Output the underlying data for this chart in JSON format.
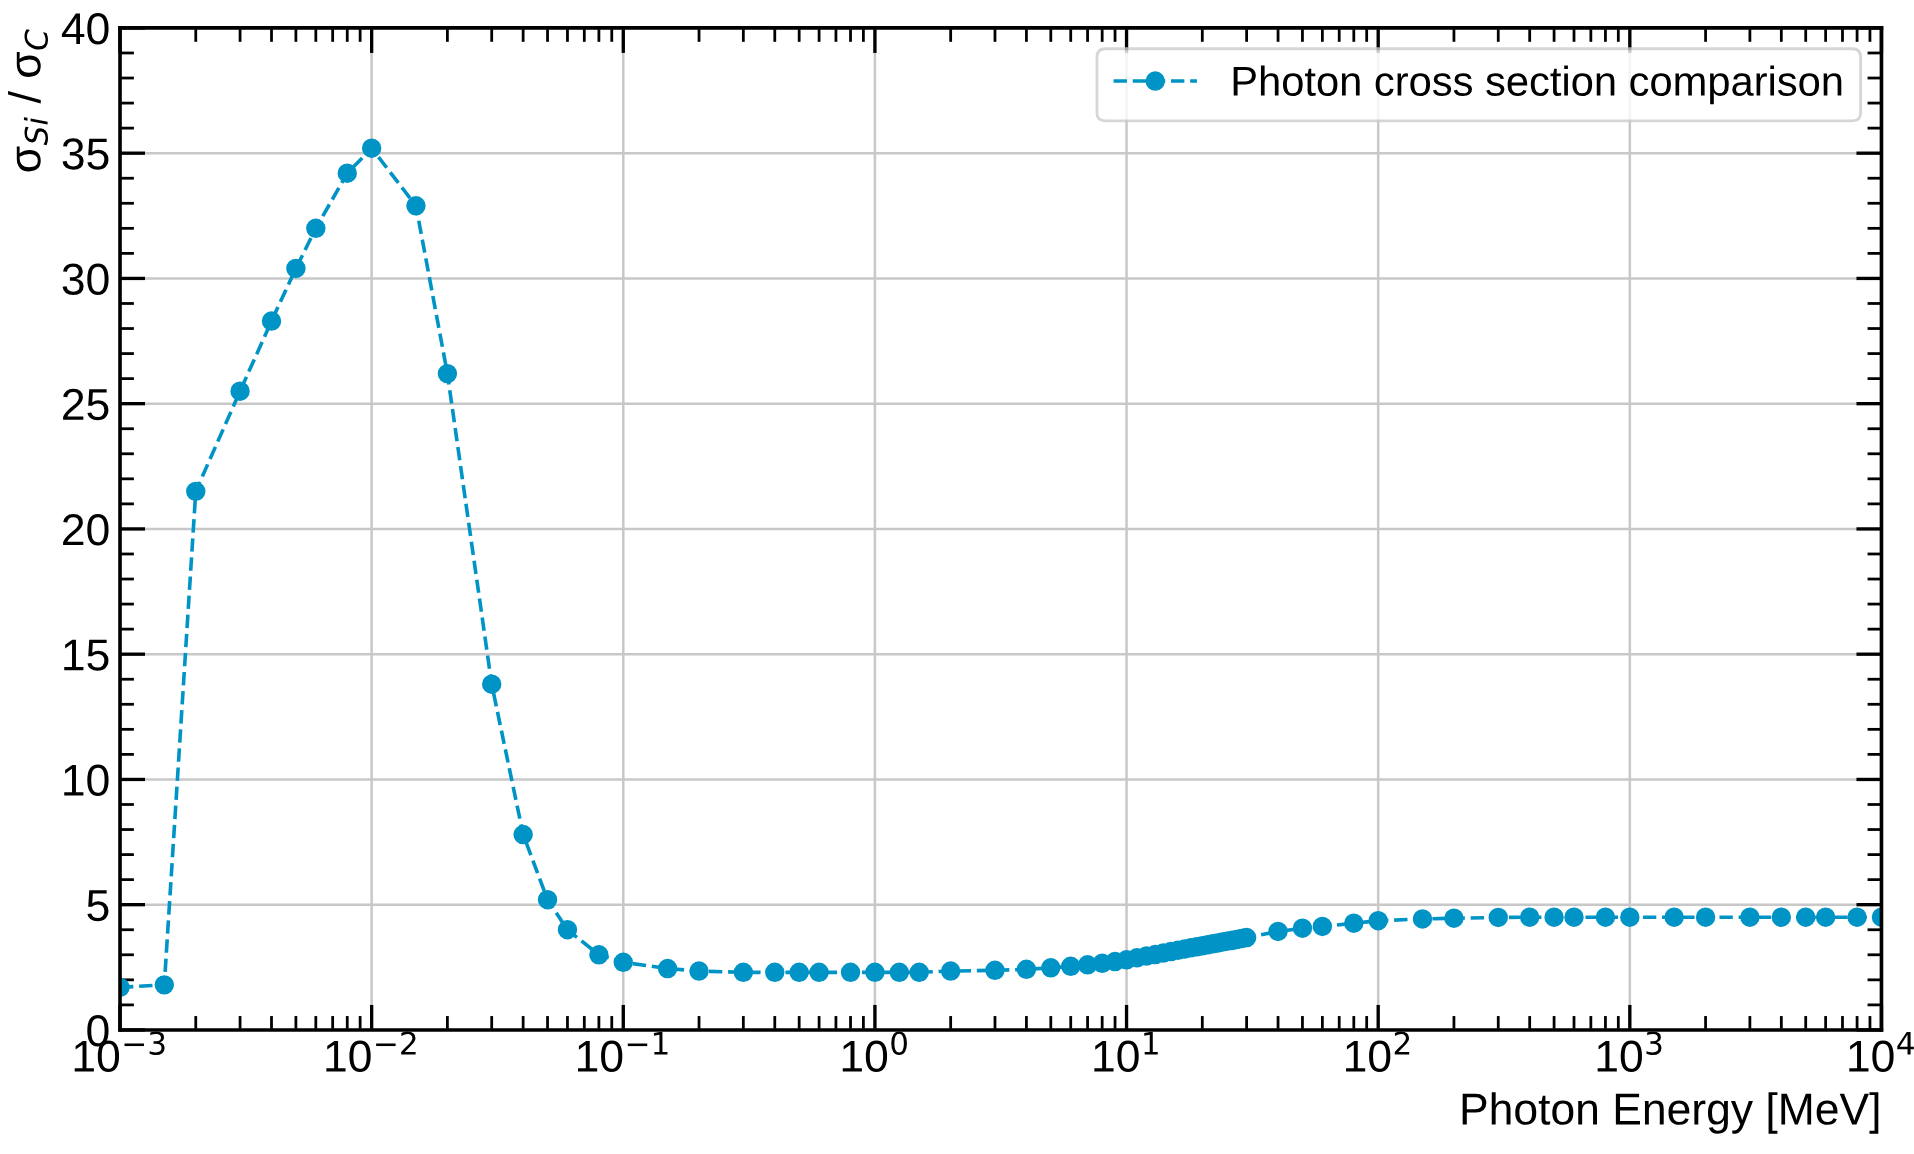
{
  "chart_data": {
    "type": "line",
    "xlabel": "Photon Energy [MeV]",
    "ylabel": "σ$_{Si}$ / σ$_{C}$",
    "log": "x",
    "grid": true,
    "legend": "top right",
    "marker": "circle",
    "line_style": "dashed",
    "xlim": [
      0.001,
      10000
    ],
    "ylim": [
      0,
      40
    ],
    "xticks": [
      {
        "value": 0.001,
        "label": "10$^{−3}$"
      },
      {
        "value": 0.01,
        "label": "10$^{−2}$"
      },
      {
        "value": 0.1,
        "label": "10$^{−1}$"
      },
      {
        "value": 1,
        "label": "10$^{0}$"
      },
      {
        "value": 10,
        "label": "10$^{1}$"
      },
      {
        "value": 100,
        "label": "10$^{2}$"
      },
      {
        "value": 1000,
        "label": "10$^{3}$"
      },
      {
        "value": 10000,
        "label": "10$^{4}$"
      }
    ],
    "yticks": [
      0,
      5,
      10,
      15,
      20,
      25,
      30,
      35,
      40
    ],
    "x": [
      0.001,
      0.0015,
      0.002,
      0.003,
      0.004,
      0.005,
      0.006,
      0.008,
      0.01,
      0.015,
      0.02,
      0.03,
      0.04,
      0.05,
      0.06,
      0.08,
      0.1,
      0.15,
      0.2,
      0.3,
      0.4,
      0.5,
      0.6,
      0.8,
      1,
      1.25,
      1.5,
      2,
      3,
      4,
      5,
      6,
      7,
      8,
      9,
      10,
      11,
      12,
      13,
      14,
      15,
      16,
      17,
      18,
      19,
      20,
      21,
      22,
      23,
      24,
      25,
      26,
      27,
      28,
      29,
      30,
      40,
      50,
      60,
      80,
      100,
      150,
      200,
      300,
      400,
      500,
      600,
      800,
      1000,
      1500,
      2000,
      3000,
      4000,
      5000,
      6000,
      8000,
      10000
    ],
    "series": [
      {
        "name": "Photon cross section comparison",
        "color": "#0094c6",
        "values": [
          1.7,
          1.8,
          21.5,
          25.5,
          28.3,
          30.4,
          32.0,
          34.2,
          35.2,
          32.9,
          26.2,
          13.8,
          7.8,
          5.2,
          4.0,
          3.0,
          2.7,
          2.45,
          2.35,
          2.3,
          2.3,
          2.3,
          2.3,
          2.3,
          2.3,
          2.3,
          2.3,
          2.35,
          2.38,
          2.42,
          2.48,
          2.54,
          2.6,
          2.66,
          2.73,
          2.8,
          2.88,
          2.95,
          3.01,
          3.07,
          3.13,
          3.18,
          3.23,
          3.28,
          3.32,
          3.36,
          3.4,
          3.44,
          3.47,
          3.51,
          3.54,
          3.57,
          3.6,
          3.63,
          3.66,
          3.69,
          3.93,
          4.06,
          4.13,
          4.26,
          4.36,
          4.43,
          4.46,
          4.49,
          4.5,
          4.5,
          4.5,
          4.5,
          4.5,
          4.5,
          4.5,
          4.5,
          4.5,
          4.5,
          4.5,
          4.5,
          4.5
        ]
      }
    ]
  }
}
